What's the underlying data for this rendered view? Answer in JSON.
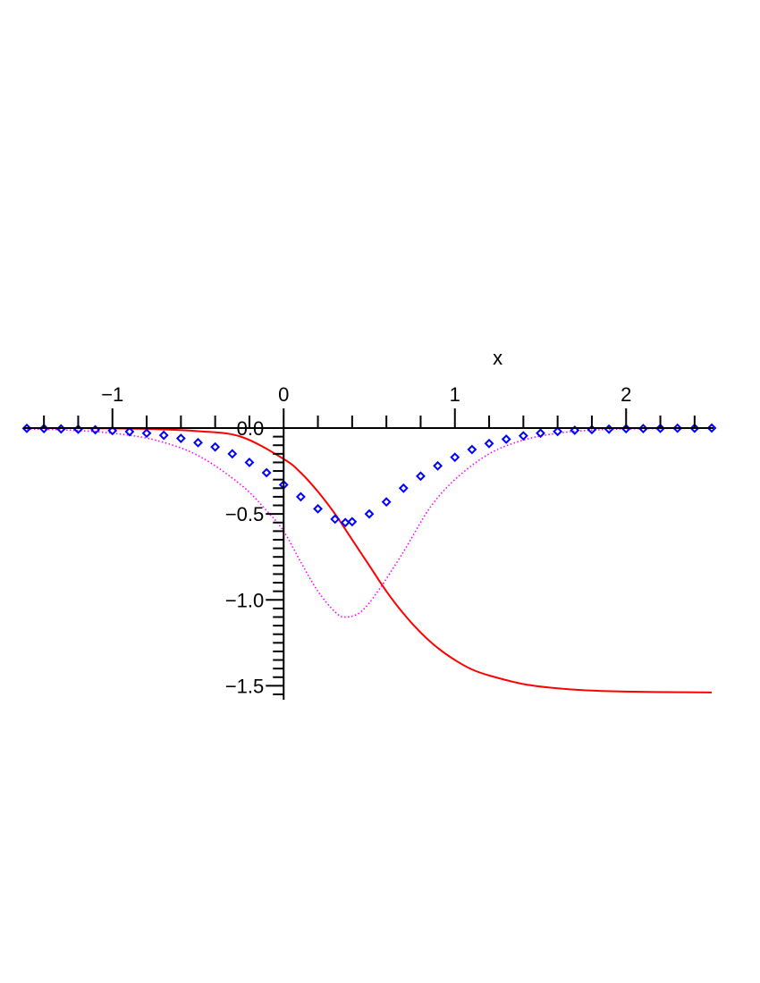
{
  "chart_data": {
    "type": "line",
    "title": "",
    "xlabel": "x",
    "ylabel": "",
    "xlim": [
      -1.5,
      2.5
    ],
    "ylim": [
      -1.55,
      0.0
    ],
    "grid": false,
    "legend": "none",
    "x_ticks_major": [
      -1,
      0,
      1,
      2
    ],
    "x_tick_labels": [
      "−1",
      "0",
      "1",
      "2"
    ],
    "y_ticks_major": [
      0,
      -0.5,
      -1.0,
      -1.5
    ],
    "y_tick_labels": [
      "0.0",
      "−0.5",
      "−1.0",
      "−1.5"
    ],
    "series": [
      {
        "style": "solid",
        "color": "#ff0000",
        "x": [
          -1.5,
          -1.25,
          -1.0,
          -0.75,
          -0.5,
          -0.25,
          0.0,
          0.1,
          0.2,
          0.3,
          0.4,
          0.5,
          0.6,
          0.7,
          0.8,
          0.9,
          1.0,
          1.1,
          1.2,
          1.4,
          1.6,
          1.8,
          2.0,
          2.25,
          2.5
        ],
        "y": [
          0.0,
          0.0,
          -0.002,
          -0.006,
          -0.018,
          -0.05,
          -0.18,
          -0.26,
          -0.37,
          -0.5,
          -0.65,
          -0.8,
          -0.95,
          -1.08,
          -1.19,
          -1.28,
          -1.35,
          -1.405,
          -1.44,
          -1.49,
          -1.515,
          -1.528,
          -1.534,
          -1.537,
          -1.539
        ]
      },
      {
        "style": "dotted",
        "color": "#ff00ff",
        "x": [
          -1.5,
          -1.25,
          -1.0,
          -0.75,
          -0.5,
          -0.25,
          -0.1,
          0.0,
          0.1,
          0.2,
          0.3,
          0.36,
          0.45,
          0.55,
          0.7,
          0.85,
          1.0,
          1.2,
          1.4,
          1.6,
          1.8,
          2.0,
          2.25,
          2.5
        ],
        "y": [
          -0.005,
          -0.012,
          -0.03,
          -0.07,
          -0.16,
          -0.33,
          -0.48,
          -0.6,
          -0.78,
          -0.95,
          -1.07,
          -1.1,
          -1.07,
          -0.95,
          -0.72,
          -0.47,
          -0.3,
          -0.15,
          -0.07,
          -0.03,
          -0.012,
          -0.005,
          -0.002,
          -0.001
        ]
      },
      {
        "style": "diamond-markers",
        "color": "#0000ff",
        "x": [
          -1.5,
          -1.4,
          -1.3,
          -1.2,
          -1.1,
          -1.0,
          -0.9,
          -0.8,
          -0.7,
          -0.6,
          -0.5,
          -0.4,
          -0.3,
          -0.2,
          -0.1,
          0.0,
          0.1,
          0.2,
          0.3,
          0.36,
          0.4,
          0.5,
          0.6,
          0.7,
          0.8,
          0.9,
          1.0,
          1.1,
          1.2,
          1.3,
          1.4,
          1.5,
          1.6,
          1.7,
          1.8,
          1.9,
          2.0,
          2.1,
          2.2,
          2.3,
          2.4,
          2.5
        ],
        "y": [
          -0.002,
          -0.003,
          -0.005,
          -0.007,
          -0.01,
          -0.015,
          -0.021,
          -0.03,
          -0.042,
          -0.06,
          -0.085,
          -0.11,
          -0.15,
          -0.2,
          -0.26,
          -0.33,
          -0.4,
          -0.47,
          -0.53,
          -0.55,
          -0.545,
          -0.5,
          -0.43,
          -0.35,
          -0.28,
          -0.22,
          -0.17,
          -0.125,
          -0.09,
          -0.065,
          -0.045,
          -0.03,
          -0.02,
          -0.013,
          -0.009,
          -0.006,
          -0.004,
          -0.003,
          -0.002,
          -0.001,
          -0.001,
          0.0
        ]
      }
    ]
  }
}
